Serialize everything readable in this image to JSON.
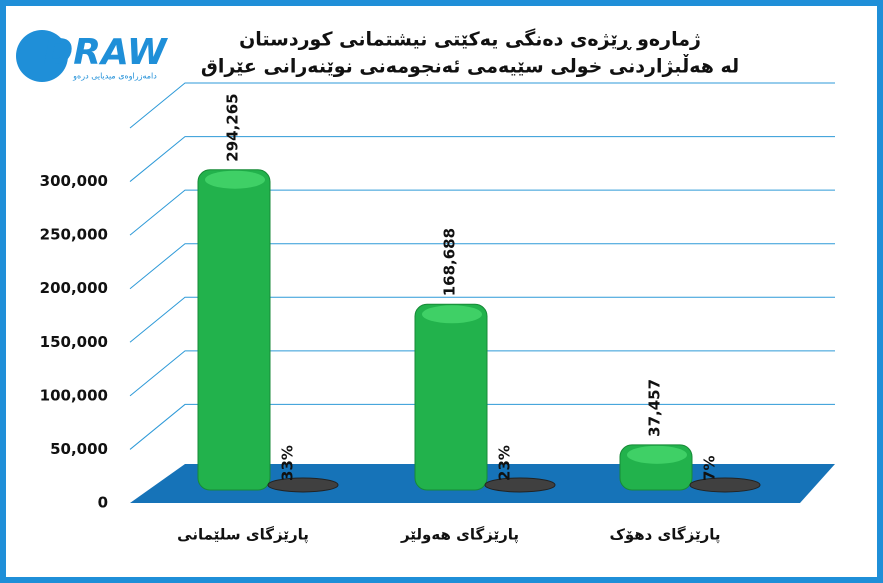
{
  "chart_data": {
    "type": "bar3d",
    "title": "ژمارەو ڕێژەی دەنگی یەکێتی نیشتمانی کوردستان",
    "subtitle": "لە هەڵبژاردنی خولی سێیەمی ئەنجومەنی نوێنەرانی عێراق",
    "logo": "DRAW",
    "logo_caption": "دامەزراوەی میدیایی درەو",
    "categories": [
      "پارێزگای سلێمانی",
      "پارێزگای هەولێر",
      "پارێزگای دهۆک"
    ],
    "series": [
      {
        "color": "#22b24c",
        "values": [
          294265,
          168688,
          37457
        ],
        "value_labels": [
          "294,265",
          "168,688",
          "37,457"
        ]
      },
      {
        "color": "#404040",
        "values": [
          33,
          23,
          7
        ],
        "value_labels": [
          "33%",
          "23%",
          "7%"
        ]
      }
    ],
    "ylim": [
      0,
      350000
    ],
    "yticks": [
      0,
      {
        "value": 50000,
        "label": "50,000"
      },
      {
        "value": 100000,
        "label": "100,000"
      },
      {
        "value": 150000,
        "label": "150,000"
      },
      {
        "value": 200000,
        "label": "200,000"
      },
      {
        "value": 250000,
        "label": "250,000"
      },
      {
        "value": 300000,
        "label": "300,000"
      }
    ],
    "grid": true
  }
}
